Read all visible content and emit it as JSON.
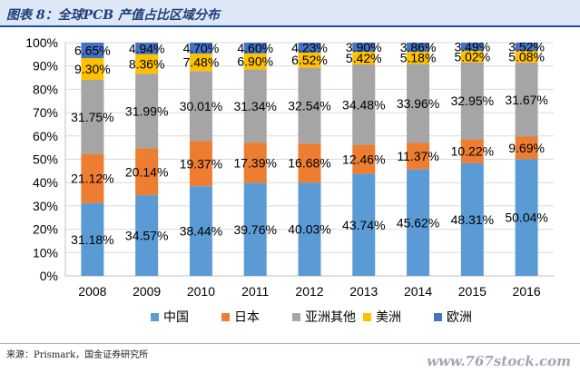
{
  "header": {
    "title": "图表 8：全球PCB 产值占比区域分布"
  },
  "footer": {
    "source": "来源：Prismark，国金证券研究所",
    "watermark": "www.767stock.com"
  },
  "chart_data": {
    "type": "bar",
    "stacked": true,
    "categories": [
      "2008",
      "2009",
      "2010",
      "2011",
      "2012",
      "2013",
      "2014",
      "2015",
      "2016"
    ],
    "series": [
      {
        "name": "中国",
        "color": "#5b9bd5",
        "values": [
          31.18,
          34.57,
          38.44,
          39.76,
          40.03,
          43.74,
          45.62,
          48.31,
          50.04
        ]
      },
      {
        "name": "日本",
        "color": "#ed7d31",
        "values": [
          21.12,
          20.14,
          19.37,
          17.39,
          16.68,
          12.46,
          11.37,
          10.22,
          9.69
        ]
      },
      {
        "name": "亚洲其他",
        "color": "#a5a5a5",
        "values": [
          31.75,
          31.99,
          30.01,
          31.34,
          32.54,
          34.48,
          33.96,
          32.95,
          31.67
        ]
      },
      {
        "name": "美洲",
        "color": "#ffc000",
        "values": [
          9.3,
          8.36,
          7.48,
          6.9,
          6.52,
          5.42,
          5.18,
          5.02,
          5.08
        ]
      },
      {
        "name": "欧洲",
        "color": "#4472c4",
        "values": [
          6.65,
          4.94,
          4.7,
          4.6,
          4.23,
          3.9,
          3.86,
          3.49,
          3.52
        ]
      }
    ],
    "labels": [
      [
        "31.18%",
        "34.57%",
        "38.44%",
        "39.76%",
        "40.03%",
        "43.74%",
        "45.62%",
        "48.31%",
        "50.04%"
      ],
      [
        "21.12%",
        "20.14%",
        "19.37%",
        "17.39%",
        "16.68%",
        "12.46%",
        "11.37%",
        "10.22%",
        "9.69%"
      ],
      [
        "31.75%",
        "31.99%",
        "30.01%",
        "31.34%",
        "32.54%",
        "34.48%",
        "33.96%",
        "32.95%",
        "31.67%"
      ],
      [
        "9.30%",
        "8.36%",
        "7.48%",
        "6.90%",
        "6.52%",
        "5.42%",
        "5.18%",
        "5.02%",
        "5.08%"
      ],
      [
        "6.65%",
        "4.94%",
        "4.70%",
        "4.60%",
        "4.23%",
        "3.90%",
        "3.86%",
        "3.49%",
        "3.52%"
      ]
    ],
    "yticks": [
      "0%",
      "10%",
      "20%",
      "30%",
      "40%",
      "50%",
      "60%",
      "70%",
      "80%",
      "90%",
      "100%"
    ],
    "ylim": [
      0,
      100
    ],
    "grid": true,
    "legend": "bottom"
  }
}
